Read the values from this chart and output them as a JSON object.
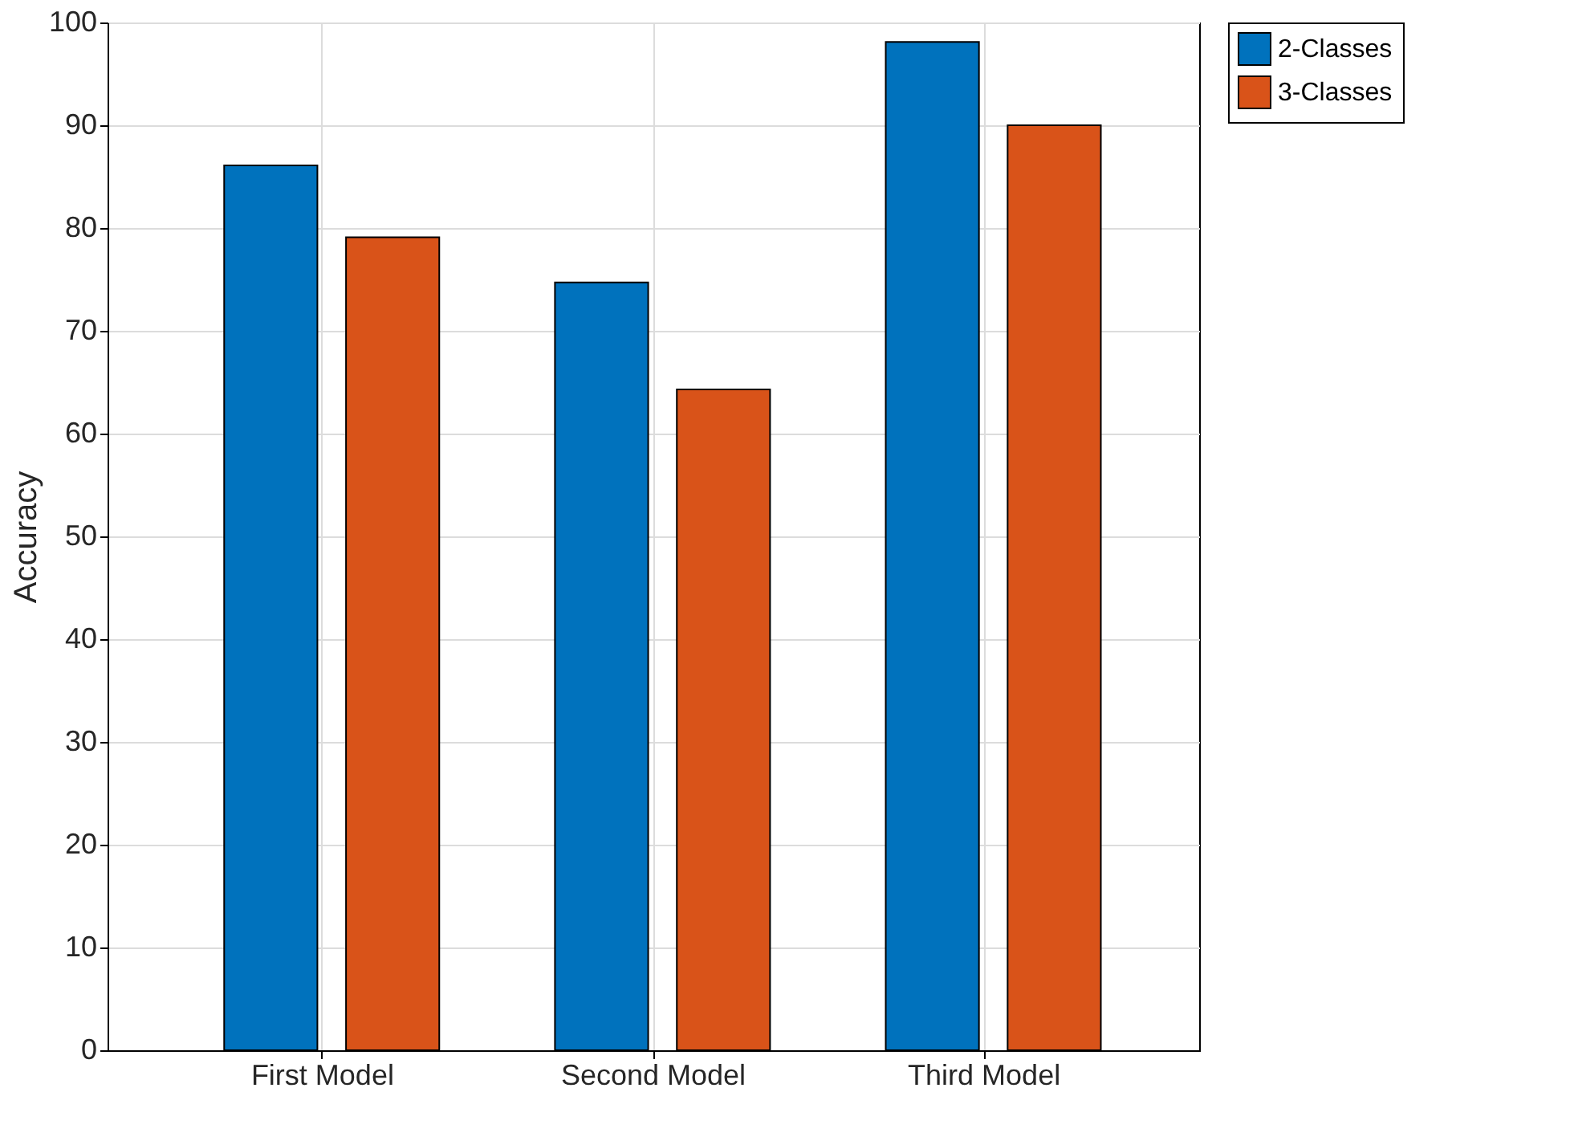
{
  "chart_data": {
    "type": "bar",
    "ylabel": "Accuracy",
    "categories": [
      "First Model",
      "Second Model",
      "Third Model"
    ],
    "series": [
      {
        "name": "2-Classes",
        "color": "#0072bd",
        "values": [
          86.1,
          74.7,
          98.1
        ]
      },
      {
        "name": "3-Classes",
        "color": "#d95319",
        "values": [
          79.1,
          64.3,
          90
        ]
      }
    ],
    "ylim": [
      0,
      100
    ],
    "yticks": [
      0,
      10,
      20,
      30,
      40,
      50,
      60,
      70,
      80,
      90,
      100
    ],
    "grid": true,
    "legend": "top right"
  }
}
